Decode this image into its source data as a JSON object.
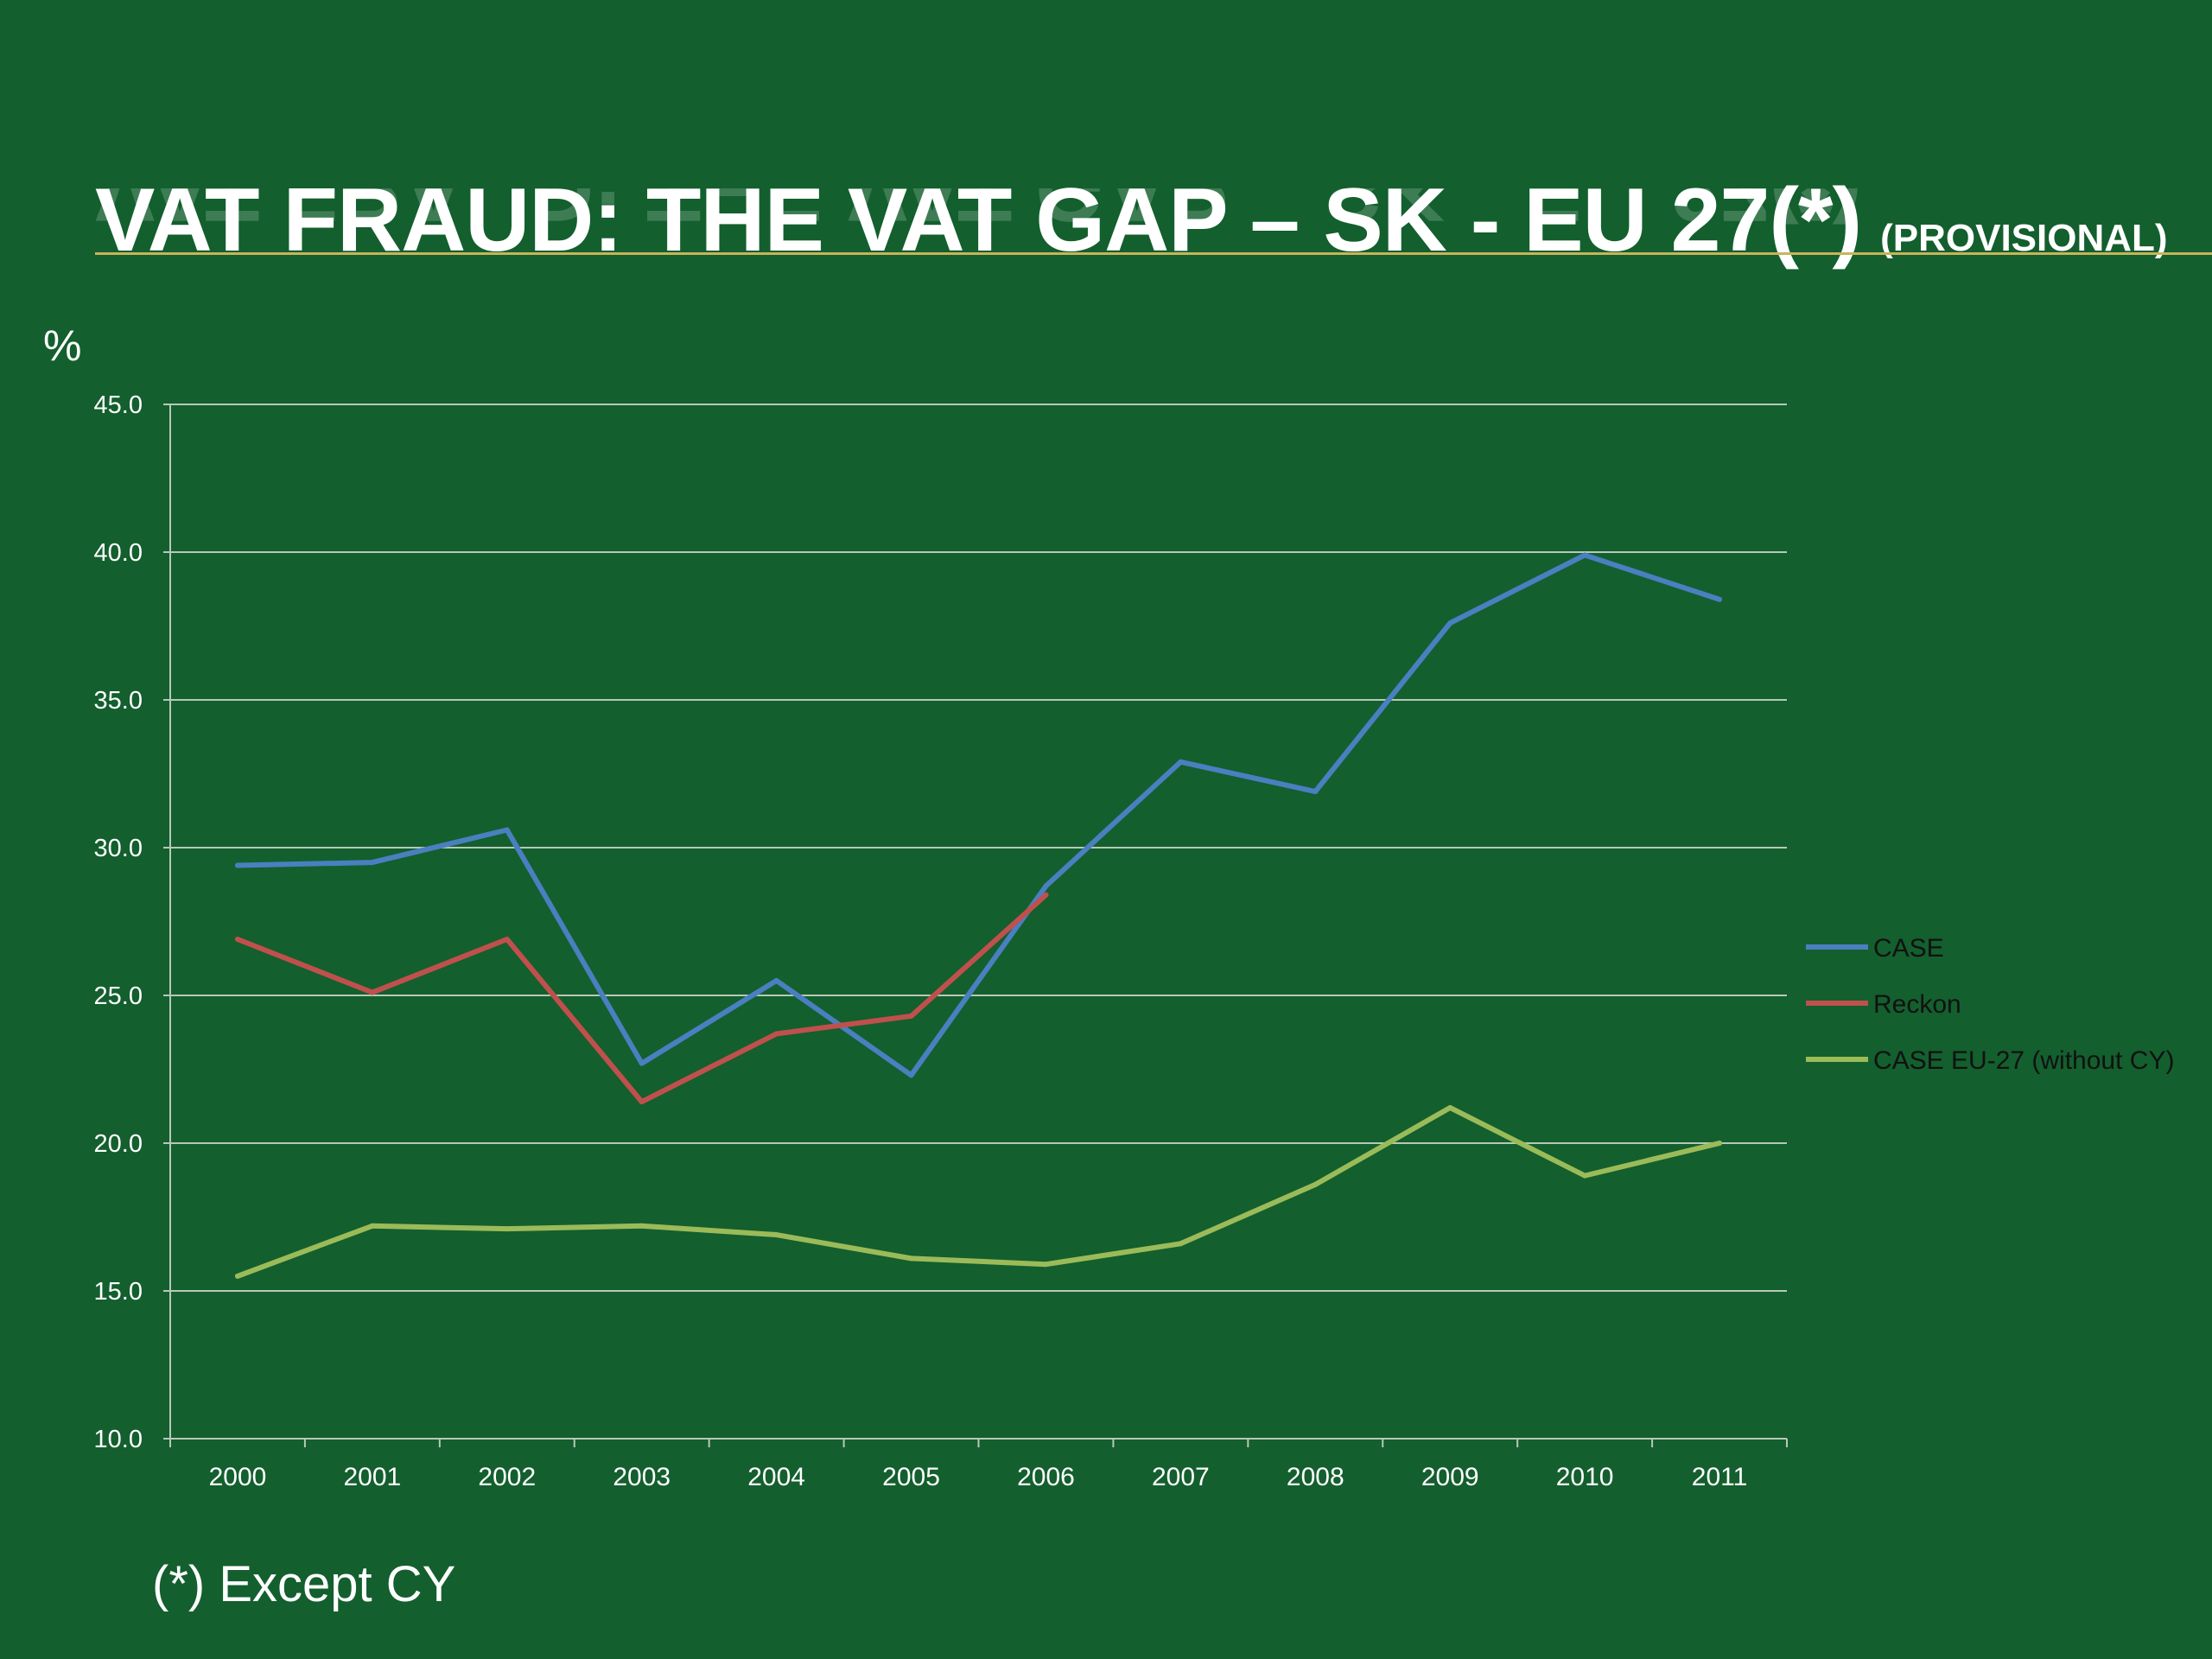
{
  "slide": {
    "title": "VAT FRAUD: THE VAT GAP – SK - EU 27(*)",
    "title_suffix": "(PROVISIONAL)",
    "footnote": "(*) Except CY"
  },
  "colors": {
    "background": "#135f2e",
    "title_rule": "#c8b45a",
    "gridline": "#b8c8b8",
    "case": "#4a7fc0",
    "reckon": "#c0504d",
    "case_eu27": "#9bbb59"
  },
  "chart_data": {
    "type": "line",
    "title": "",
    "xlabel": "",
    "ylabel": "%",
    "categories": [
      "2000",
      "2001",
      "2002",
      "2003",
      "2004",
      "2005",
      "2006",
      "2007",
      "2008",
      "2009",
      "2010",
      "2011"
    ],
    "ylim": [
      10.0,
      45.0
    ],
    "yticks": [
      "10.0",
      "15.0",
      "20.0",
      "25.0",
      "30.0",
      "35.0",
      "40.0",
      "45.0"
    ],
    "grid": true,
    "legend_position": "right",
    "series": [
      {
        "name": "CASE",
        "color": "#4a7fc0",
        "values": [
          29.4,
          29.5,
          30.6,
          22.7,
          25.5,
          22.3,
          28.7,
          32.9,
          31.9,
          37.6,
          39.9,
          38.4
        ]
      },
      {
        "name": "Reckon",
        "color": "#c0504d",
        "values": [
          26.9,
          25.1,
          26.9,
          21.4,
          23.7,
          24.3,
          28.4,
          null,
          null,
          null,
          null,
          null
        ]
      },
      {
        "name": "CASE EU-27 (without CY)",
        "color": "#9bbb59",
        "values": [
          15.5,
          17.2,
          17.1,
          17.2,
          16.9,
          16.1,
          15.9,
          16.6,
          18.6,
          21.2,
          18.9,
          20.0
        ]
      }
    ]
  }
}
